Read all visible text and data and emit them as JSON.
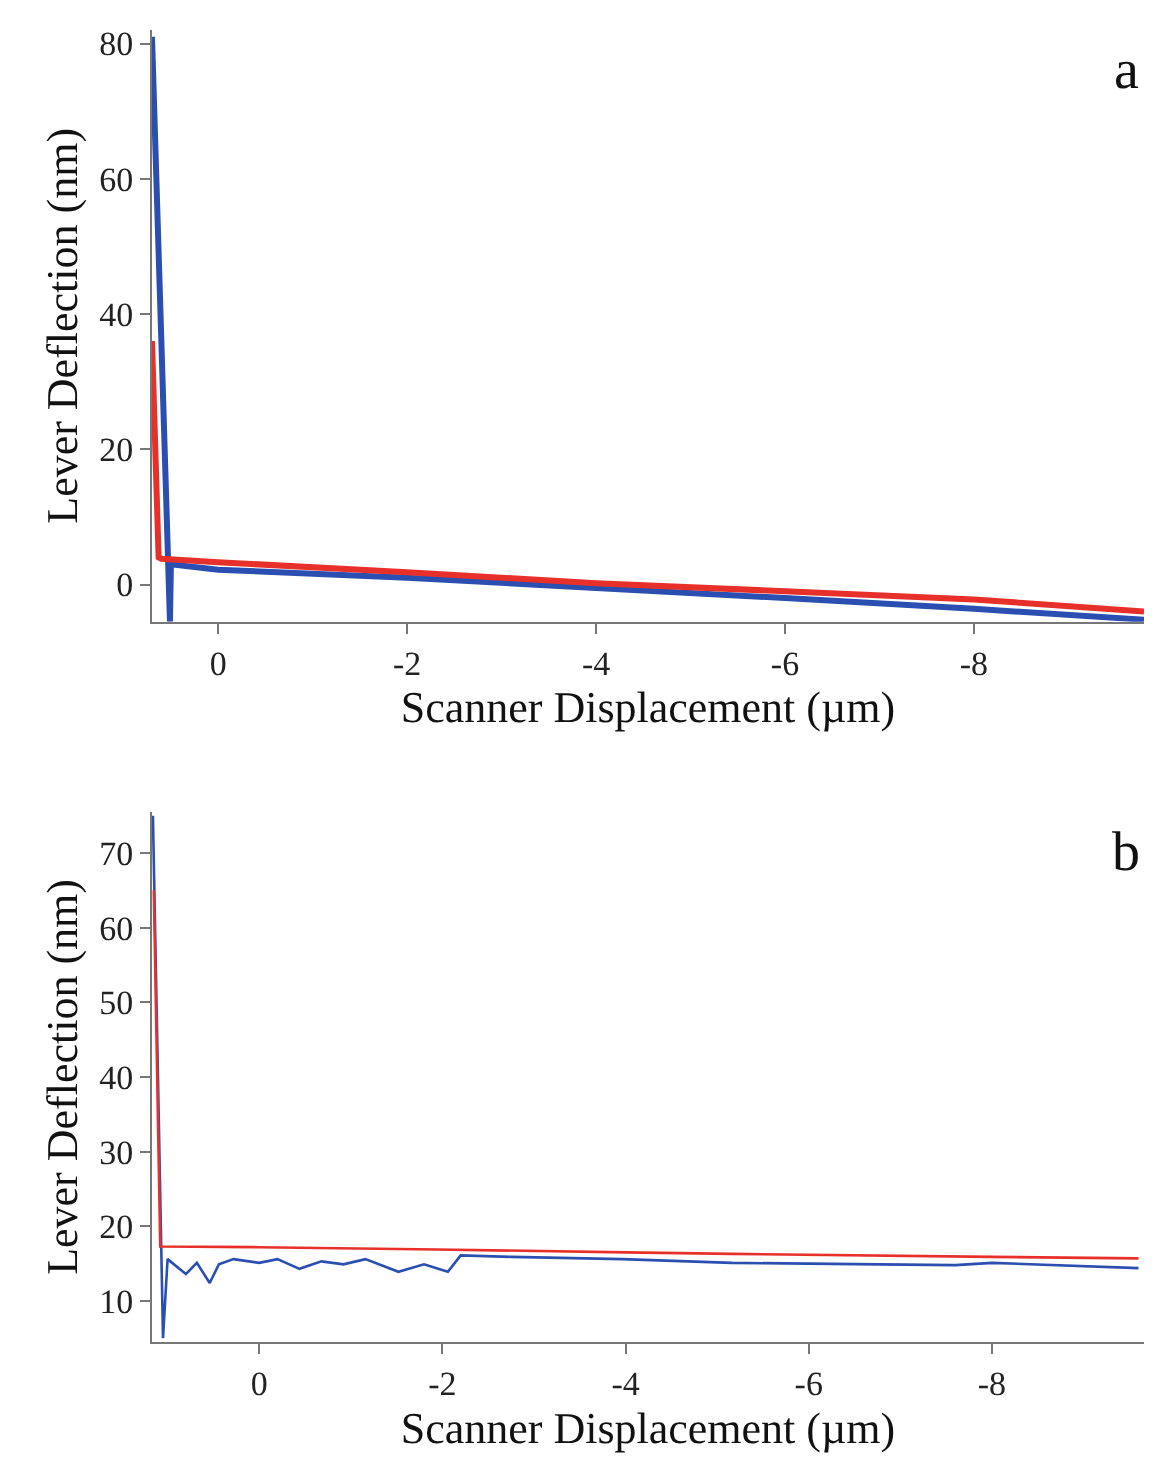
{
  "chart_data": [
    {
      "type": "line",
      "xlabel": "Scanner Displacement (µm)",
      "ylabel": "Lever Deflection (nm)",
      "annotations": [
        "a"
      ],
      "xlim": [
        0.7,
        -9.8
      ],
      "ylim": [
        -5.5,
        82
      ],
      "xticks": [
        0,
        -2,
        -4,
        -6,
        -8
      ],
      "yticks": [
        0,
        20,
        40,
        60,
        80
      ],
      "series": [
        {
          "color": "#e8302a",
          "x": [
            0.7,
            0.63,
            0.6,
            0,
            -2,
            -4,
            -6,
            -8,
            -9.8
          ],
          "values": [
            36,
            4,
            3.8,
            3.3,
            1.8,
            0.2,
            -1,
            -2.2,
            -4
          ]
        },
        {
          "color": "#2a4fb0",
          "x": [
            0.7,
            0.51,
            0.5,
            0,
            -2,
            -4,
            -6,
            -8,
            -9.8
          ],
          "values": [
            81,
            -5.5,
            3,
            2.2,
            1,
            -0.5,
            -2,
            -3.6,
            -5.2
          ]
        }
      ]
    },
    {
      "type": "line",
      "xlabel": "Scanner Displacement (µm)",
      "ylabel": "Lever Deflection (nm)",
      "annotations": [
        "b"
      ],
      "xlim": [
        1.17,
        -9.66
      ],
      "ylim": [
        4.5,
        75.5
      ],
      "xticks": [
        0,
        -2,
        -4,
        -6,
        -8
      ],
      "yticks": [
        10,
        20,
        30,
        40,
        50,
        60,
        70
      ],
      "series": [
        {
          "color": "#e8302a",
          "x": [
            1.15,
            1.08,
            0,
            -1.94,
            -4,
            -5.16,
            -8,
            -9.6
          ],
          "values": [
            65,
            17.3,
            17.2,
            16.9,
            16.5,
            16.3,
            15.9,
            15.7
          ]
        },
        {
          "color": "#2a4fb0",
          "x": [
            1.16,
            1.05,
            1.0,
            0.8,
            0.68,
            0.54,
            0.44,
            0.28,
            0,
            -0.2,
            -0.44,
            -0.68,
            -0.92,
            -1.16,
            -1.52,
            -1.8,
            -2.06,
            -2.2,
            -2.76,
            -3.96,
            -5.16,
            -6.77,
            -7.6,
            -8.0,
            -9.6
          ],
          "values": [
            75,
            5,
            15.6,
            13.6,
            15.1,
            12.4,
            14.9,
            15.6,
            15.1,
            15.6,
            14.3,
            15.3,
            14.9,
            15.6,
            13.9,
            14.9,
            13.9,
            16.1,
            15.9,
            15.6,
            15.1,
            14.9,
            14.8,
            15.1,
            14.4
          ]
        }
      ]
    }
  ]
}
